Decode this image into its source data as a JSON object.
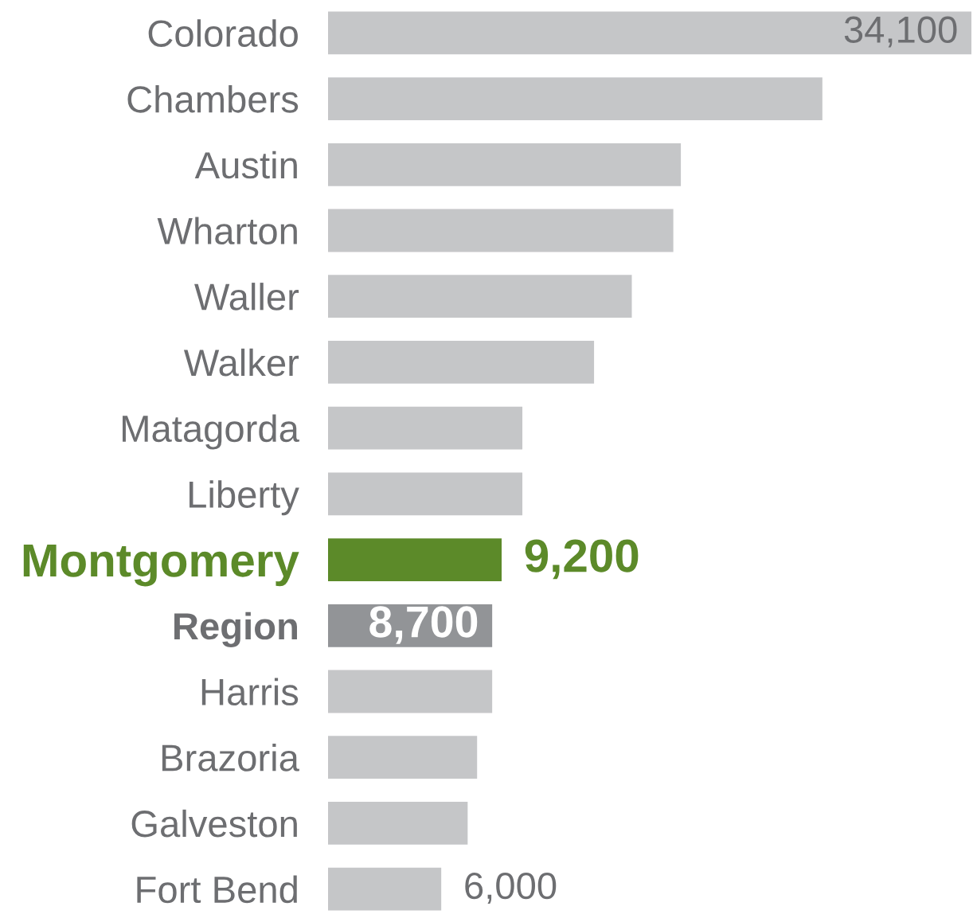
{
  "chart_data": {
    "type": "bar",
    "orientation": "horizontal",
    "tick_labels": "y",
    "categories": [
      "Colorado",
      "Chambers",
      "Austin",
      "Wharton",
      "Waller",
      "Walker",
      "Matagorda",
      "Liberty",
      "Montgomery",
      "Region",
      "Harris",
      "Brazoria",
      "Galveston",
      "Fort Bend"
    ],
    "values": [
      34100,
      26200,
      18700,
      18300,
      16100,
      14100,
      10300,
      10300,
      9200,
      8700,
      8700,
      7900,
      7400,
      6000
    ],
    "colors": [
      "#c5c6c8",
      "#c5c6c8",
      "#c5c6c8",
      "#c5c6c8",
      "#c5c6c8",
      "#c5c6c8",
      "#c5c6c8",
      "#c5c6c8",
      "#5c8a29",
      "#929497",
      "#c5c6c8",
      "#c5c6c8",
      "#c5c6c8",
      "#c5c6c8"
    ],
    "value_labels": [
      "34,100",
      null,
      null,
      null,
      null,
      null,
      null,
      null,
      "9,200",
      "8,700",
      null,
      null,
      null,
      "6,000"
    ]
  }
}
